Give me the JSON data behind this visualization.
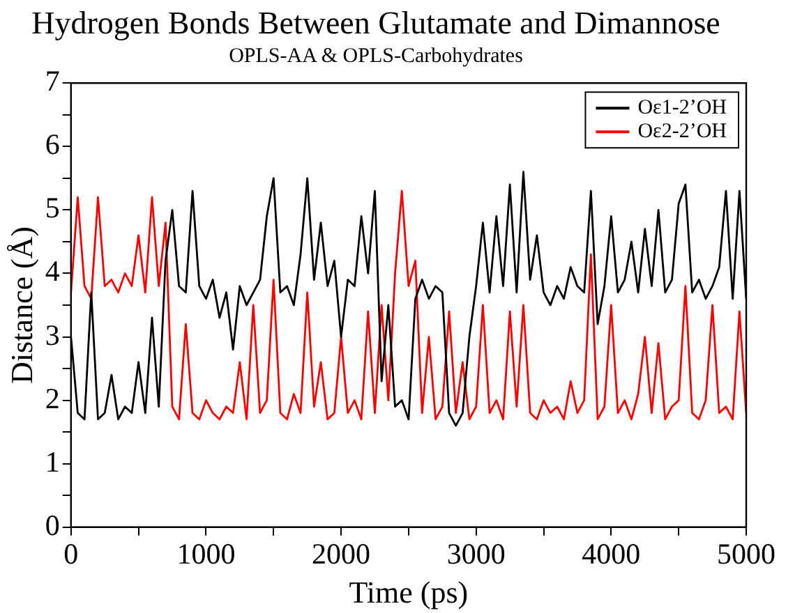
{
  "chart_data": {
    "type": "line",
    "title": "Hydrogen Bonds Between Glutamate and Dimannose",
    "subtitle": "OPLS-AA & OPLS-Carbohydrates",
    "xlabel": "Time (ps)",
    "ylabel": "Distance (Å)",
    "x": [
      0,
      50,
      100,
      150,
      200,
      250,
      300,
      350,
      400,
      450,
      500,
      550,
      600,
      650,
      700,
      750,
      800,
      850,
      900,
      950,
      1000,
      1050,
      1100,
      1150,
      1200,
      1250,
      1300,
      1350,
      1400,
      1450,
      1500,
      1550,
      1600,
      1650,
      1700,
      1750,
      1800,
      1850,
      1900,
      1950,
      2000,
      2050,
      2100,
      2150,
      2200,
      2250,
      2300,
      2350,
      2400,
      2450,
      2500,
      2550,
      2600,
      2650,
      2700,
      2750,
      2800,
      2850,
      2900,
      2950,
      3000,
      3050,
      3100,
      3150,
      3200,
      3250,
      3300,
      3350,
      3400,
      3450,
      3500,
      3550,
      3600,
      3650,
      3700,
      3750,
      3800,
      3850,
      3900,
      3950,
      4000,
      4050,
      4100,
      4150,
      4200,
      4250,
      4300,
      4350,
      4400,
      4450,
      4500,
      4550,
      4600,
      4650,
      4700,
      4750,
      4800,
      4850,
      4900,
      4950,
      5000
    ],
    "series": [
      {
        "name": "Oε1-2’OH",
        "color": "#000000",
        "values": [
          3.0,
          1.8,
          1.7,
          3.7,
          1.7,
          1.8,
          2.4,
          1.7,
          1.9,
          1.8,
          2.6,
          1.8,
          3.3,
          1.9,
          4.2,
          5.0,
          3.8,
          3.7,
          5.3,
          3.8,
          3.6,
          3.9,
          3.3,
          3.7,
          2.8,
          3.8,
          3.5,
          3.7,
          3.9,
          4.9,
          5.5,
          3.7,
          3.8,
          3.5,
          4.3,
          5.5,
          3.9,
          4.8,
          3.8,
          4.2,
          3.0,
          3.9,
          3.8,
          4.9,
          4.0,
          5.3,
          2.3,
          3.5,
          1.9,
          2.0,
          1.7,
          3.6,
          3.9,
          3.6,
          3.8,
          3.7,
          1.8,
          1.6,
          1.8,
          3.0,
          3.8,
          4.8,
          3.7,
          4.9,
          3.8,
          5.4,
          3.7,
          5.6,
          3.9,
          4.6,
          3.7,
          3.5,
          3.8,
          3.6,
          4.1,
          3.8,
          3.7,
          5.3,
          3.2,
          3.8,
          4.9,
          3.7,
          3.9,
          4.5,
          3.7,
          4.7,
          3.8,
          5.0,
          3.7,
          3.9,
          5.1,
          5.4,
          3.7,
          3.9,
          3.6,
          3.8,
          4.1,
          5.3,
          3.6,
          5.3,
          3.6
        ]
      },
      {
        "name": "Oε2-2’OH",
        "color": "#ff0000",
        "values": [
          3.7,
          5.2,
          3.8,
          3.6,
          5.2,
          3.8,
          3.9,
          3.7,
          4.0,
          3.8,
          4.6,
          3.7,
          5.2,
          3.8,
          4.8,
          1.9,
          1.7,
          3.2,
          1.8,
          1.7,
          2.0,
          1.8,
          1.7,
          1.9,
          1.8,
          2.6,
          1.7,
          3.5,
          1.8,
          2.0,
          3.9,
          1.8,
          1.7,
          2.1,
          1.8,
          3.7,
          1.9,
          2.6,
          1.7,
          1.8,
          3.0,
          1.8,
          2.0,
          1.7,
          3.4,
          1.8,
          3.5,
          2.0,
          4.0,
          5.3,
          3.8,
          4.2,
          1.8,
          3.0,
          1.7,
          1.9,
          3.4,
          1.8,
          2.6,
          1.7,
          1.9,
          3.5,
          1.8,
          2.0,
          1.7,
          3.4,
          1.9,
          3.5,
          1.8,
          1.7,
          2.0,
          1.8,
          1.9,
          1.7,
          2.3,
          1.8,
          2.0,
          4.3,
          1.7,
          1.9,
          3.5,
          1.8,
          2.0,
          1.7,
          2.1,
          3.0,
          1.8,
          2.9,
          1.7,
          1.9,
          2.0,
          3.8,
          1.8,
          1.7,
          2.0,
          3.5,
          1.8,
          1.9,
          1.7,
          3.4,
          1.8
        ]
      }
    ],
    "xlim": [
      0,
      5000
    ],
    "xticks": [
      0,
      {
        "value": 500,
        "label": null
      },
      1000,
      {
        "value": 1500,
        "label": null
      },
      2000,
      {
        "value": 2500,
        "label": null
      },
      3000,
      {
        "value": 3500,
        "label": null
      },
      4000,
      {
        "value": 4500,
        "label": null
      },
      5000
    ],
    "ylim": [
      0,
      7
    ],
    "yticks": [
      0,
      {
        "value": 0.5,
        "label": null
      },
      1,
      {
        "value": 1.5,
        "label": null
      },
      2,
      {
        "value": 2.5,
        "label": null
      },
      3,
      {
        "value": 3.5,
        "label": null
      },
      4,
      {
        "value": 4.5,
        "label": null
      },
      5,
      {
        "value": 5.5,
        "label": null
      },
      6,
      {
        "value": 6.5,
        "label": null
      },
      7
    ],
    "grid": false,
    "legend": "top right"
  }
}
